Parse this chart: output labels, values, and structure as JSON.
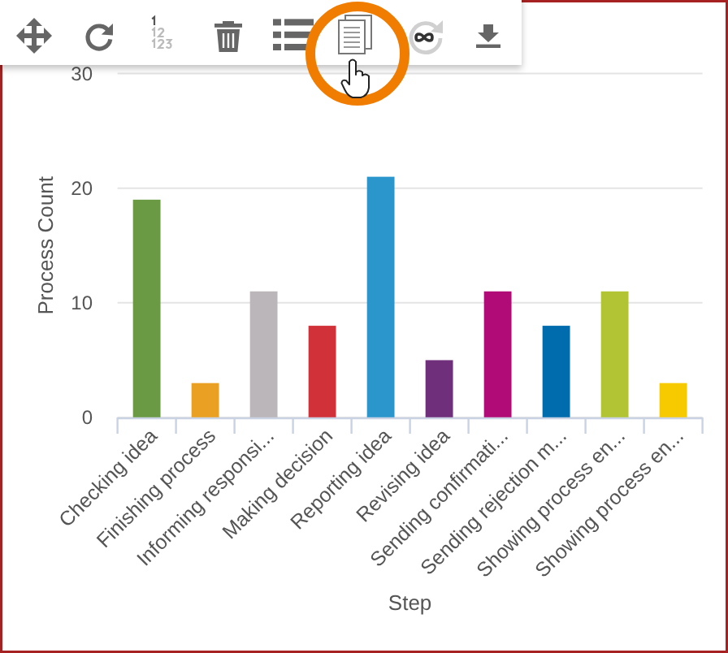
{
  "chart_data": {
    "type": "bar",
    "categories": [
      "Checking idea",
      "Finishing process",
      "Informing responsi...",
      "Making decision",
      "Reporting idea",
      "Revising idea",
      "Sending confirmati...",
      "Sending rejection m...",
      "Showing process en...",
      "Showing process en..."
    ],
    "values": [
      19,
      3,
      11,
      8,
      21,
      5,
      11,
      8,
      11,
      3
    ],
    "colors": [
      "#6a9a44",
      "#e9a023",
      "#bab6b9",
      "#d13239",
      "#2b96cc",
      "#6f2f7a",
      "#b00b76",
      "#006cad",
      "#b2c434",
      "#f7ca00"
    ],
    "ylim": [
      0,
      30
    ],
    "yticks": [
      0,
      10,
      20,
      30
    ],
    "grid": "y",
    "xlabel": "Step",
    "ylabel": "Process Count"
  }
}
